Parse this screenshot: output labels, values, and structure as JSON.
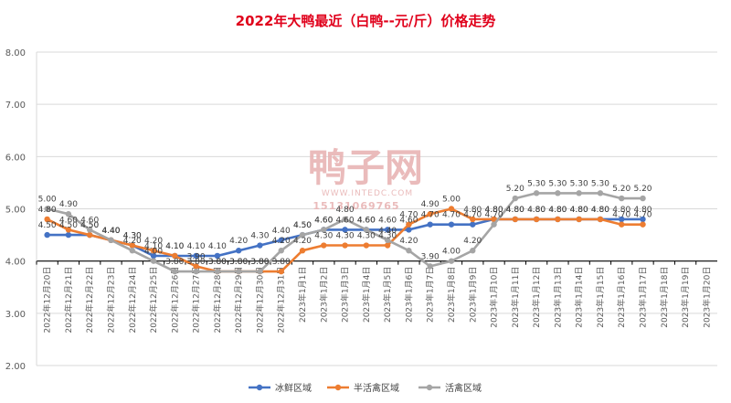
{
  "chart_data": {
    "type": "line",
    "title": "2022年大鸭最近（白鸭--元/斤）价格走势",
    "xlabel": "",
    "ylabel": "",
    "ylim": [
      2.0,
      8.0
    ],
    "yticks": [
      "2.00",
      "3.00",
      "4.00",
      "5.00",
      "6.00",
      "7.00",
      "8.00"
    ],
    "grid": "horizontal",
    "legend": "bottom",
    "categories": [
      "2022年12月20日",
      "2022年12月21日",
      "2022年12月22日",
      "2022年12月23日",
      "2022年12月24日",
      "2022年12月25日",
      "2022年12月26日",
      "2022年12月27日",
      "2022年12月28日",
      "2022年12月29日",
      "2022年12月30日",
      "2022年12月31日",
      "2023年1月1日",
      "2023年1月2日",
      "2023年1月3日",
      "2023年1月4日",
      "2023年1月5日",
      "2023年1月6日",
      "2023年1月7日",
      "2023年1月8日",
      "2023年1月9日",
      "2023年1月10日",
      "2023年1月11日",
      "2023年1月12日",
      "2023年1月13日",
      "2023年1月14日",
      "2023年1月15日",
      "2023年1月16日",
      "2023年1月17日",
      "2023年1月18日",
      "2023年1月19日",
      "2023年1月20日"
    ],
    "series": [
      {
        "name": "冰鲜区域",
        "color": "#4472c4",
        "values": [
          4.5,
          4.5,
          4.5,
          4.4,
          4.3,
          4.1,
          4.1,
          4.1,
          4.1,
          4.2,
          4.3,
          4.4,
          4.5,
          4.6,
          4.6,
          4.6,
          4.6,
          4.6,
          4.7,
          4.7,
          4.7,
          4.8,
          4.8,
          4.8,
          4.8,
          4.8,
          4.8,
          4.8,
          4.8,
          null,
          null,
          null
        ]
      },
      {
        "name": "半活禽区域",
        "color": "#ed7d31",
        "values": [
          4.8,
          4.6,
          4.5,
          4.4,
          4.3,
          4.2,
          4.1,
          3.9,
          3.8,
          3.8,
          3.8,
          3.8,
          4.2,
          4.3,
          4.3,
          4.3,
          4.3,
          4.7,
          4.9,
          5.0,
          4.8,
          4.8,
          4.8,
          4.8,
          4.8,
          4.8,
          4.8,
          4.7,
          4.7,
          null,
          null,
          null
        ]
      },
      {
        "name": "活禽区域",
        "color": "#a5a5a5",
        "values": [
          5.0,
          4.9,
          4.6,
          4.4,
          4.2,
          4.0,
          3.8,
          3.8,
          3.8,
          3.8,
          3.8,
          4.2,
          4.5,
          4.6,
          4.8,
          4.6,
          4.4,
          4.2,
          3.9,
          4.0,
          4.2,
          4.7,
          5.2,
          5.3,
          5.3,
          5.3,
          5.3,
          5.2,
          5.2,
          null,
          null,
          null
        ]
      }
    ]
  },
  "watermark": {
    "logo_text": "鸭子网",
    "url": "WWW.INTEDC.COM",
    "phone": "15131069765"
  }
}
